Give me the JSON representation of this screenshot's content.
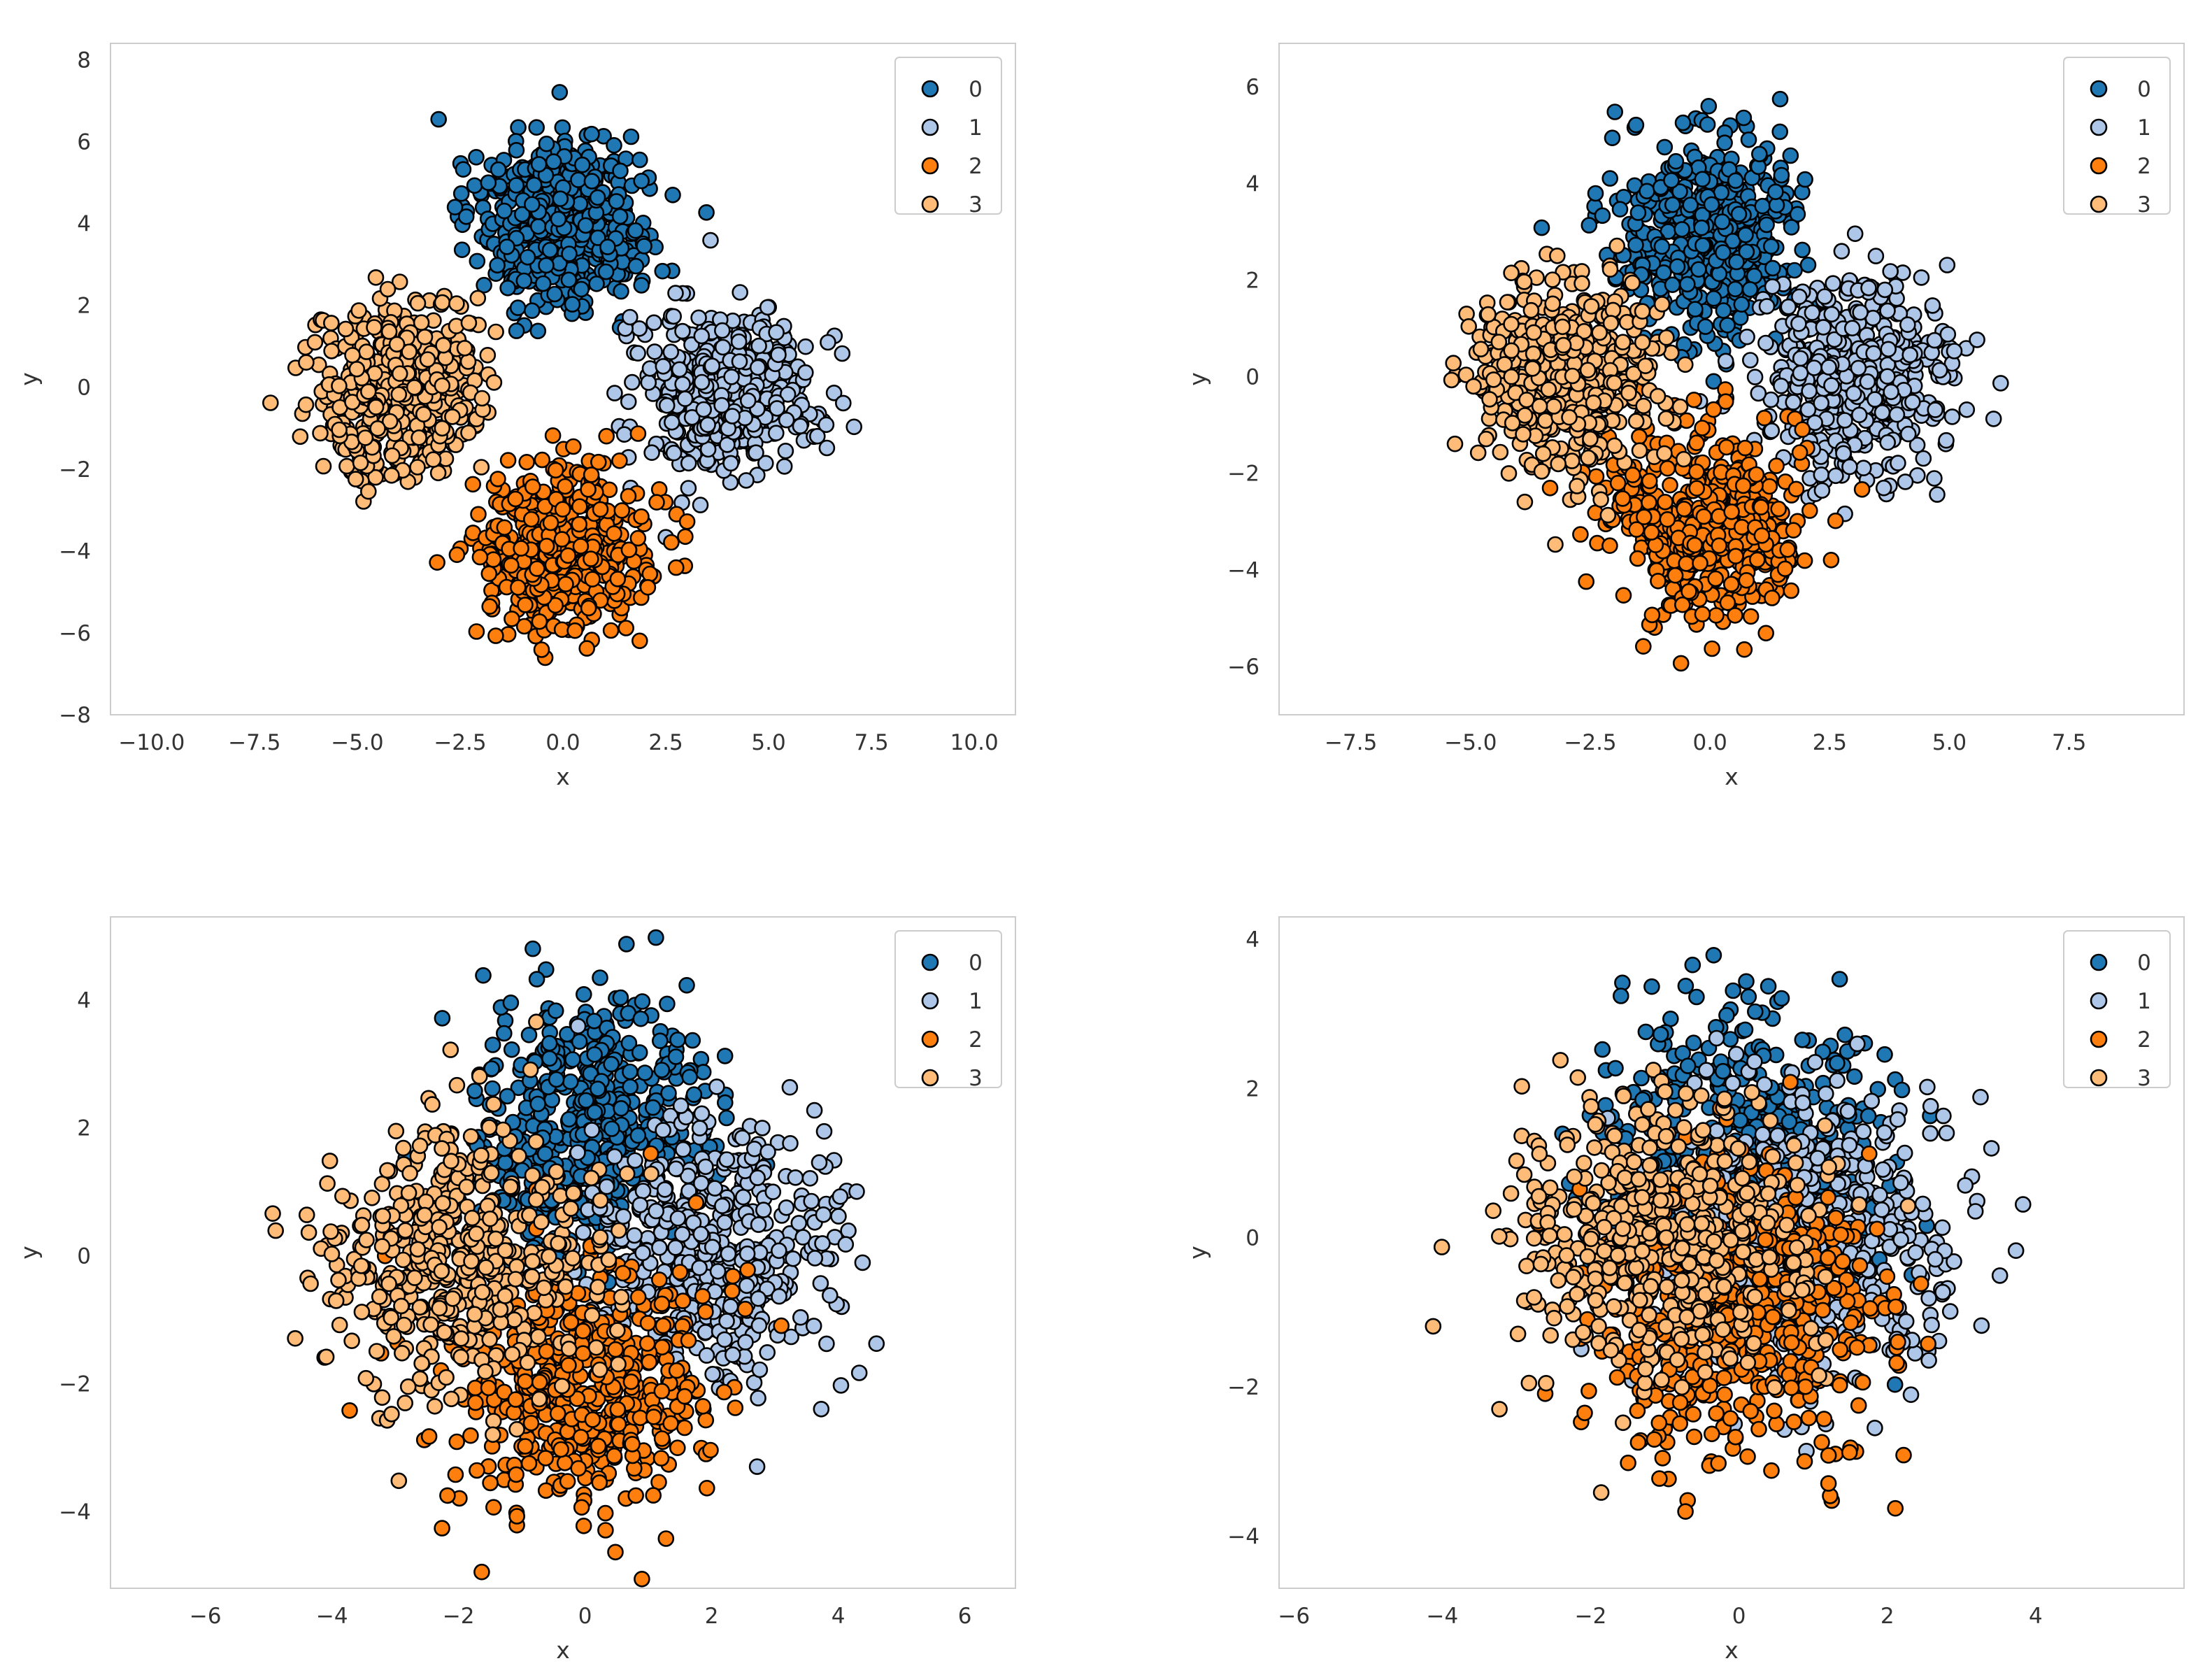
{
  "colors": {
    "c0": "#1f77b4",
    "c1": "#aec7e8",
    "c2": "#ff7f0e",
    "c3": "#ffbb78",
    "edge": "#000000",
    "frame": "#cccccc"
  },
  "chart_data": [
    {
      "type": "scatter",
      "xlabel": "x",
      "ylabel": "y",
      "xlim": [
        -11,
        11
      ],
      "ylim": [
        -8,
        8.4
      ],
      "xticks": [
        -10,
        -7.5,
        -5,
        -2.5,
        0,
        2.5,
        5,
        7.5,
        10
      ],
      "xtick_labels": [
        "−10.0",
        "−7.5",
        "−5.0",
        "−2.5",
        "0.0",
        "2.5",
        "5.0",
        "7.5",
        "10.0"
      ],
      "yticks": [
        -8,
        -6,
        -4,
        -2,
        0,
        2,
        4,
        6,
        8
      ],
      "ytick_labels": [
        "−8",
        "−6",
        "−4",
        "−2",
        "0",
        "2",
        "4",
        "6",
        "8"
      ],
      "legend": {
        "placement": "top-right",
        "entries": [
          "0",
          "1",
          "2",
          "3"
        ]
      },
      "grid": false,
      "series": [
        {
          "name": "0",
          "center": [
            0,
            4
          ],
          "spread": 1.0,
          "count": 500,
          "seed": 11
        },
        {
          "name": "1",
          "center": [
            4,
            0
          ],
          "spread": 1.0,
          "count": 500,
          "seed": 12
        },
        {
          "name": "2",
          "center": [
            0,
            -4
          ],
          "spread": 1.0,
          "count": 500,
          "seed": 13
        },
        {
          "name": "3",
          "center": [
            -4,
            0
          ],
          "spread": 1.0,
          "count": 500,
          "seed": 14
        }
      ]
    },
    {
      "type": "scatter",
      "xlabel": "x",
      "ylabel": "y",
      "xlim": [
        -9,
        9.9
      ],
      "ylim": [
        -7,
        6.9
      ],
      "xticks": [
        -7.5,
        -5,
        -2.5,
        0,
        2.5,
        5,
        7.5
      ],
      "xtick_labels": [
        "−7.5",
        "−5.0",
        "−2.5",
        "0.0",
        "2.5",
        "5.0",
        "7.5"
      ],
      "yticks": [
        -6,
        -4,
        -2,
        0,
        2,
        4,
        6
      ],
      "ytick_labels": [
        "−6",
        "−4",
        "−2",
        "0",
        "2",
        "4",
        "6"
      ],
      "legend": {
        "placement": "top-right",
        "entries": [
          "0",
          "1",
          "2",
          "3"
        ]
      },
      "grid": false,
      "series": [
        {
          "name": "0",
          "center": [
            0,
            3
          ],
          "spread": 1.0,
          "count": 500,
          "seed": 21
        },
        {
          "name": "1",
          "center": [
            3,
            0
          ],
          "spread": 1.0,
          "count": 500,
          "seed": 22
        },
        {
          "name": "2",
          "center": [
            0,
            -3
          ],
          "spread": 1.0,
          "count": 500,
          "seed": 23
        },
        {
          "name": "3",
          "center": [
            -3,
            0
          ],
          "spread": 1.0,
          "count": 500,
          "seed": 24
        }
      ]
    },
    {
      "type": "scatter",
      "xlabel": "x",
      "ylabel": "y",
      "xlim": [
        -7.5,
        6.8
      ],
      "ylim": [
        -5.2,
        5.3
      ],
      "xticks": [
        -6,
        -4,
        -2,
        0,
        2,
        4,
        6
      ],
      "xtick_labels": [
        "−6",
        "−4",
        "−2",
        "0",
        "2",
        "4",
        "6"
      ],
      "yticks": [
        -4,
        -2,
        0,
        2,
        4
      ],
      "ytick_labels": [
        "−4",
        "−2",
        "0",
        "2",
        "4"
      ],
      "legend": {
        "placement": "top-right",
        "entries": [
          "0",
          "1",
          "2",
          "3"
        ]
      },
      "grid": false,
      "series": [
        {
          "name": "0",
          "center": [
            0,
            2
          ],
          "spread": 1.0,
          "count": 500,
          "seed": 31
        },
        {
          "name": "1",
          "center": [
            2,
            0
          ],
          "spread": 1.0,
          "count": 500,
          "seed": 32
        },
        {
          "name": "2",
          "center": [
            0,
            -2
          ],
          "spread": 1.0,
          "count": 500,
          "seed": 33
        },
        {
          "name": "3",
          "center": [
            -2,
            0
          ],
          "spread": 1.0,
          "count": 500,
          "seed": 34
        }
      ]
    },
    {
      "type": "scatter",
      "xlabel": "x",
      "ylabel": "y",
      "xlim": [
        -6.2,
        6
      ],
      "ylim": [
        -4.7,
        4.3
      ],
      "xticks": [
        -6,
        -4,
        -2,
        0,
        2,
        4
      ],
      "xtick_labels": [
        "−6",
        "−4",
        "−2",
        "0",
        "2",
        "4"
      ],
      "yticks": [
        -4,
        -2,
        0,
        2,
        4
      ],
      "ytick_labels": [
        "−4",
        "−2",
        "0",
        "2",
        "4"
      ],
      "legend": {
        "placement": "top-right",
        "entries": [
          "0",
          "1",
          "2",
          "3"
        ]
      },
      "grid": false,
      "series": [
        {
          "name": "0",
          "center": [
            0,
            1
          ],
          "spread": 1.0,
          "count": 500,
          "seed": 41
        },
        {
          "name": "1",
          "center": [
            1,
            0
          ],
          "spread": 1.0,
          "count": 500,
          "seed": 42
        },
        {
          "name": "2",
          "center": [
            0,
            -1
          ],
          "spread": 1.0,
          "count": 500,
          "seed": 43
        },
        {
          "name": "3",
          "center": [
            -1,
            0
          ],
          "spread": 1.0,
          "count": 500,
          "seed": 44
        }
      ]
    }
  ]
}
